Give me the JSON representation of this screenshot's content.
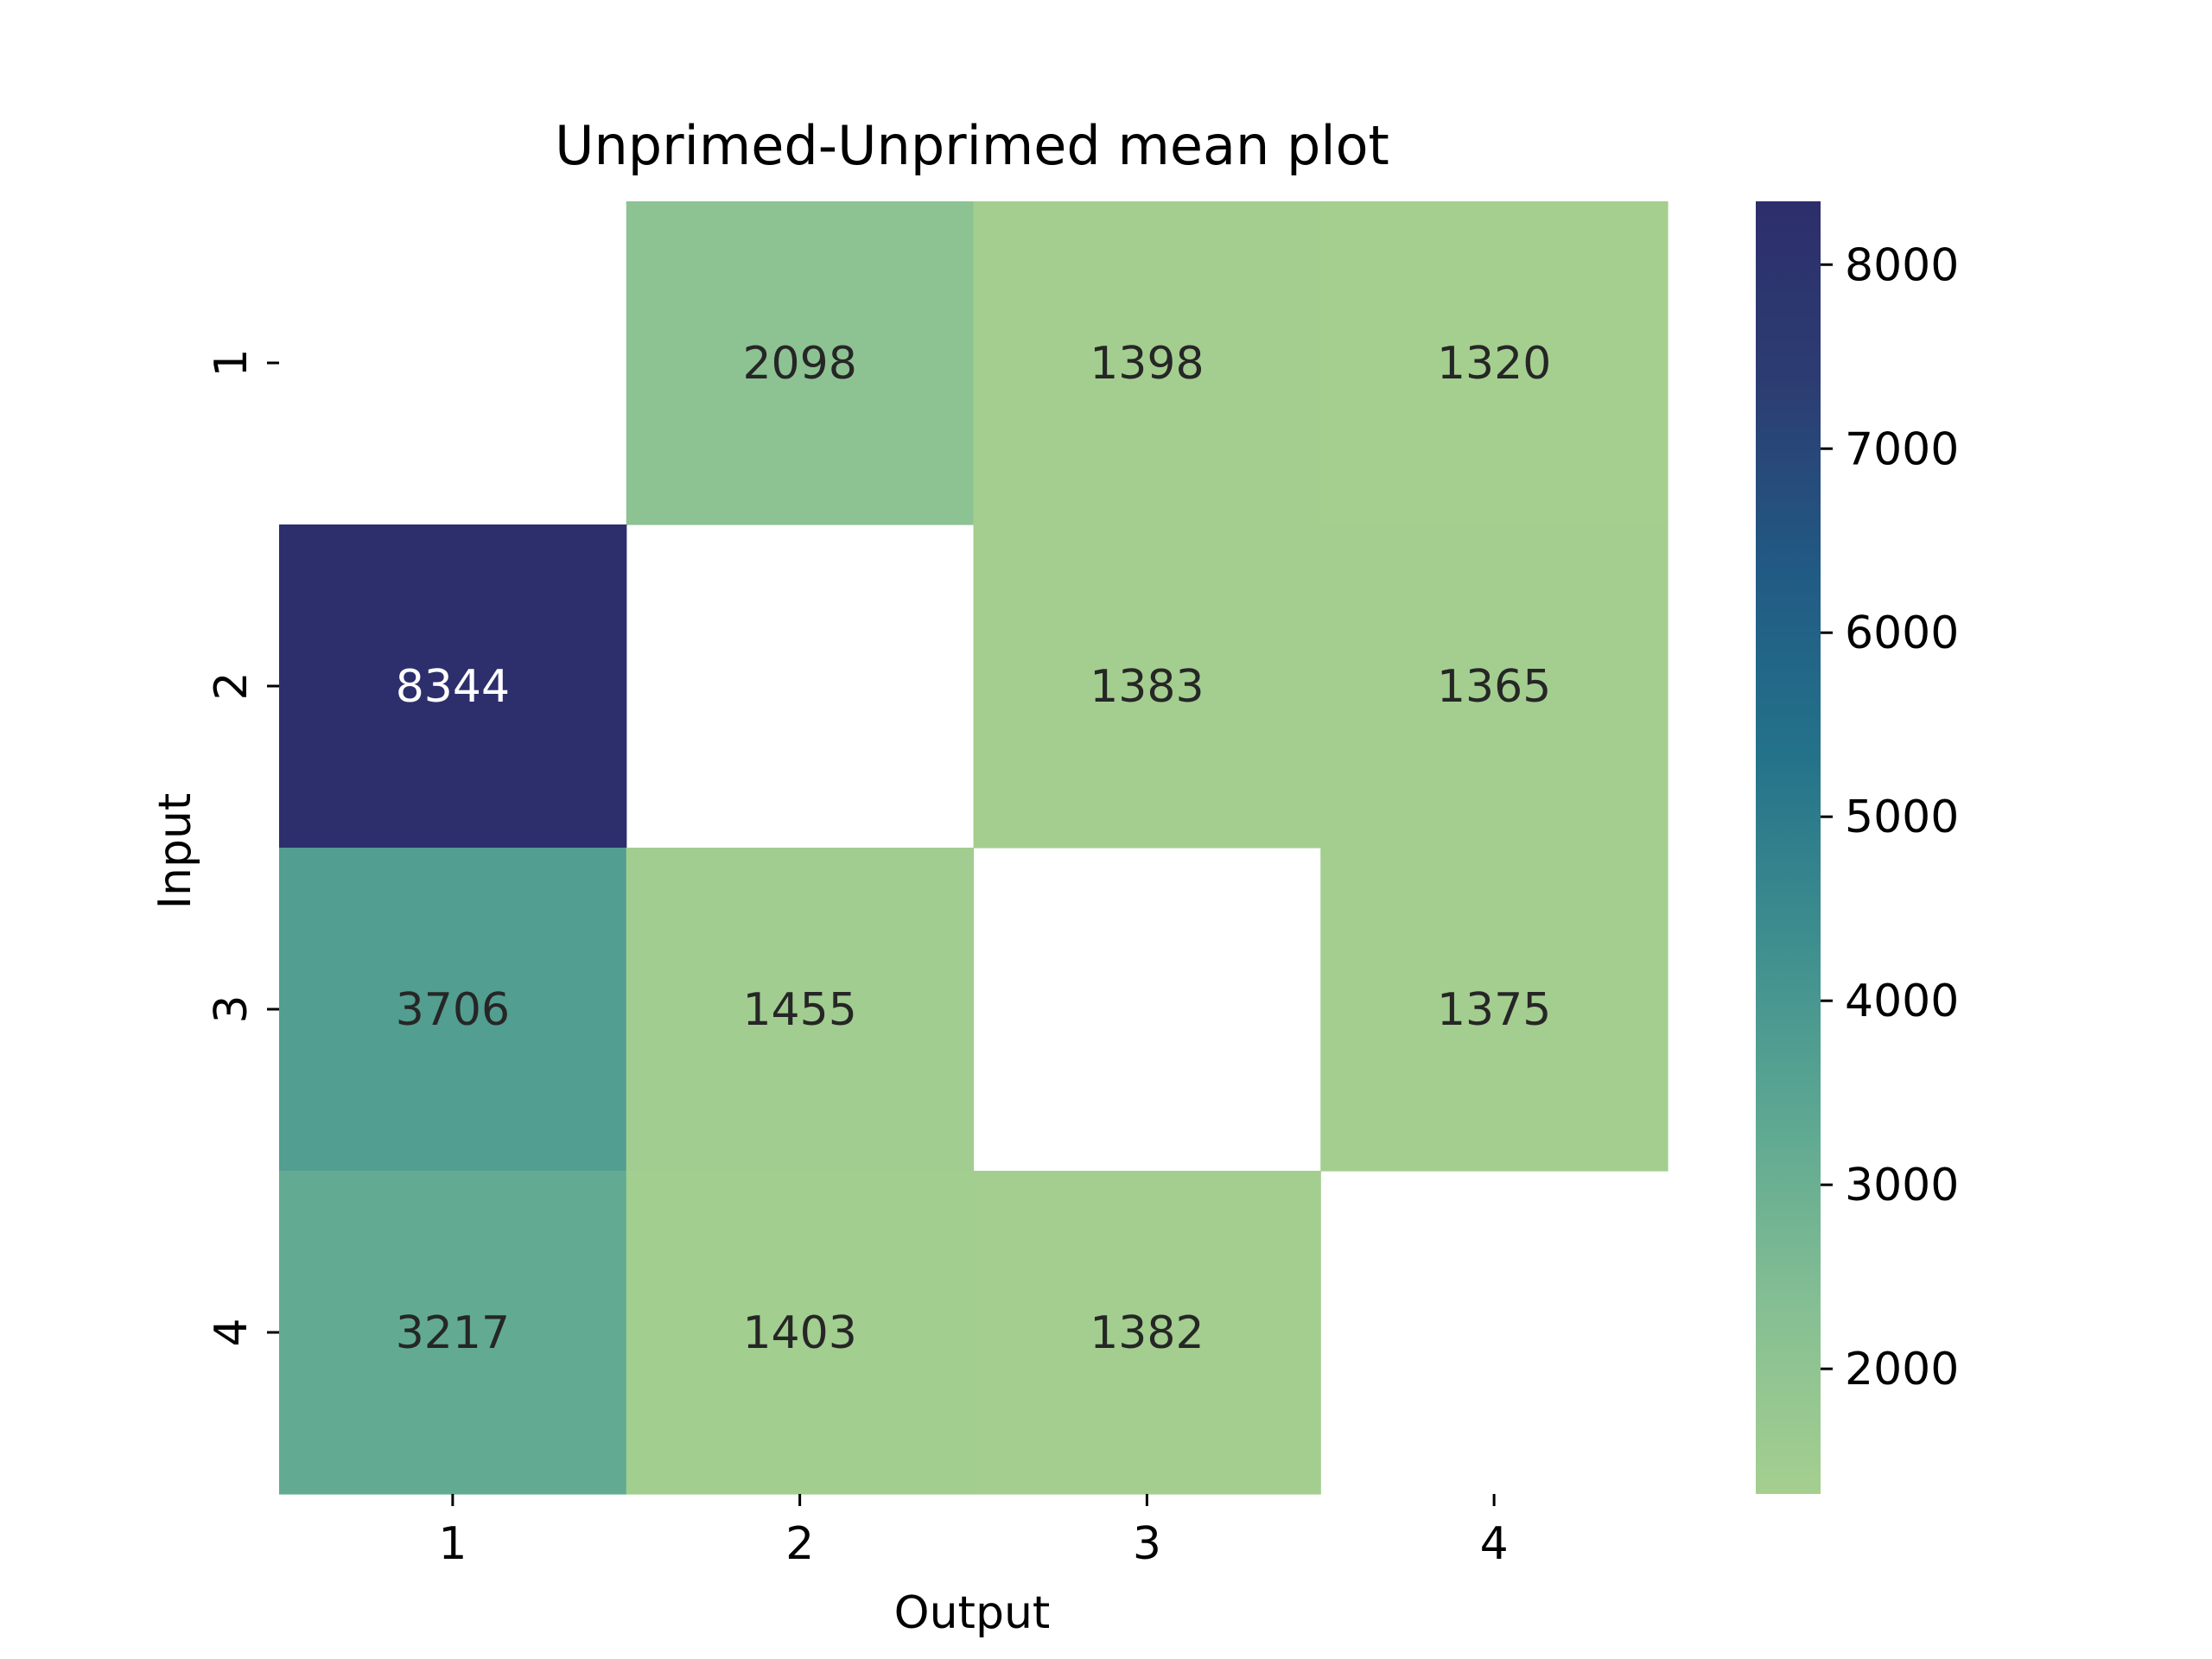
{
  "chart_data": {
    "type": "heatmap",
    "title": "Unprimed-Unprimed mean plot",
    "xlabel": "Output",
    "ylabel": "Input",
    "x_categories": [
      "1",
      "2",
      "3",
      "4"
    ],
    "y_categories": [
      "1",
      "2",
      "3",
      "4"
    ],
    "values": [
      [
        null,
        2098,
        1398,
        1320
      ],
      [
        8344,
        null,
        1383,
        1365
      ],
      [
        3706,
        1455,
        null,
        1375
      ],
      [
        3217,
        1403,
        1382,
        null
      ]
    ],
    "colorbar": {
      "vmin": 1320,
      "vmax": 8344,
      "ticks": [
        2000,
        3000,
        4000,
        5000,
        6000,
        7000,
        8000
      ],
      "tick_labels": [
        "2000",
        "3000",
        "4000",
        "5000",
        "6000",
        "7000",
        "8000"
      ]
    },
    "colormap": "crest",
    "colormap_stops": [
      "#a5cf8f",
      "#86bf93",
      "#5ea892",
      "#3e8e8f",
      "#24728a",
      "#215a84",
      "#2c3d72",
      "#2d2e6c"
    ],
    "annotation_dark_color": "#262626",
    "annotation_light_color": "#ffffff",
    "missing_color": "#ffffff",
    "legend": "none"
  }
}
